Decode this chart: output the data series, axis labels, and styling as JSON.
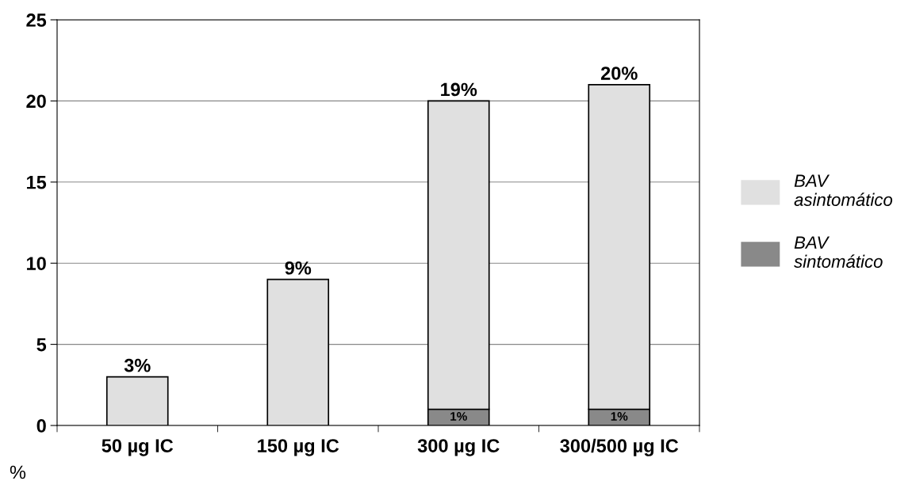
{
  "chart_data": {
    "type": "bar",
    "stacked": true,
    "ylabel": "%",
    "categories": [
      "50 µg IC",
      "150 µg IC",
      "300 µg IC",
      "300/500 µg IC"
    ],
    "series": [
      {
        "name": "BAV sintomático",
        "color": "#898989",
        "values": [
          null,
          null,
          1,
          1
        ],
        "value_labels": [
          null,
          null,
          "1%",
          "1%"
        ]
      },
      {
        "name": "BAV asintomático",
        "color": "#e0e0e0",
        "values": [
          3,
          9,
          19,
          20
        ],
        "value_labels": [
          "3%",
          "9%",
          "19%",
          "20%"
        ]
      }
    ],
    "ylim": [
      0,
      25
    ],
    "yticks": [
      0,
      5,
      10,
      15,
      20,
      25
    ],
    "grid": "y",
    "legend": "right"
  }
}
